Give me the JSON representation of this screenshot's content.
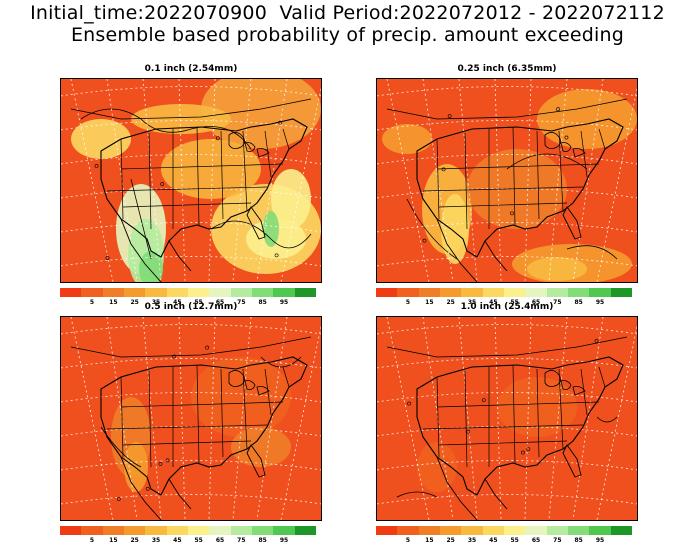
{
  "header": {
    "line1": "Initial_time:2022070900  Valid Period:2022072012 - 2022072112",
    "line2": "Ensemble based probability of precip. amount exceeding"
  },
  "colors": {
    "scale": [
      "#f03c14",
      "#f0601e",
      "#f07d28",
      "#f59b2d",
      "#f8b941",
      "#fbd860",
      "#fcf08c",
      "#e6f5c0",
      "#b4eba0",
      "#82dc78",
      "#50c850",
      "#1e9628"
    ],
    "land_mask": "#f0501e",
    "ocean_background": "#f4b446"
  },
  "colorbar": {
    "labels": [
      "5",
      "15",
      "25",
      "35",
      "45",
      "55",
      "65",
      "75",
      "85",
      "95"
    ]
  },
  "panels": [
    {
      "id": "p1",
      "title": "0.1 inch (2.54mm)",
      "dominant": "mixed-dry"
    },
    {
      "id": "p2",
      "title": "0.25 inch (6.35mm)",
      "dominant": "mixed"
    },
    {
      "id": "p3",
      "title": "0.5 inch (12.7mm)",
      "dominant": "low"
    },
    {
      "id": "p4",
      "title": "1.0 inch (25.4mm)",
      "dominant": "very-low"
    }
  ]
}
